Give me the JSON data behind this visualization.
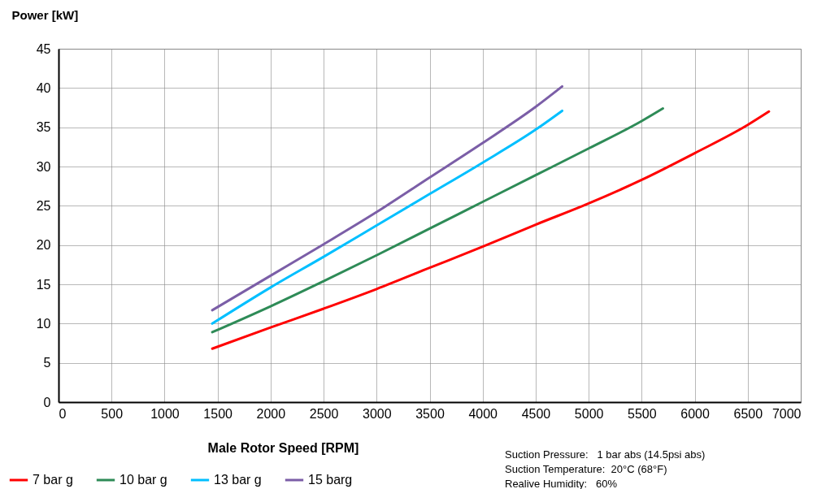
{
  "chart_data": {
    "type": "line",
    "xlabel": "Male Rotor Speed [RPM]",
    "ylabel": "Power [kW]",
    "xlim": [
      0,
      7000
    ],
    "ylim": [
      0,
      45
    ],
    "xticks": [
      0,
      500,
      1000,
      1500,
      2000,
      2500,
      3000,
      3500,
      4000,
      4500,
      5000,
      5500,
      6000,
      6500,
      7000
    ],
    "yticks": [
      0,
      5,
      10,
      15,
      20,
      25,
      30,
      35,
      40,
      45
    ],
    "grid": true,
    "legend": "bottom left",
    "series": [
      {
        "name": "7 bar g",
        "color": "#ff0000",
        "x": [
          1450,
          2000,
          2500,
          3000,
          3500,
          4000,
          4500,
          5000,
          5500,
          6000,
          6500,
          6700
        ],
        "values": [
          6.8,
          9.5,
          11.9,
          14.4,
          17.1,
          19.8,
          22.6,
          25.3,
          28.3,
          31.7,
          35.3,
          37.0
        ]
      },
      {
        "name": "10 bar g",
        "color": "#2e8b57",
        "x": [
          1450,
          2000,
          2500,
          3000,
          3500,
          4000,
          4500,
          5000,
          5500,
          5700
        ],
        "values": [
          8.9,
          12.2,
          15.4,
          18.7,
          22.1,
          25.5,
          28.9,
          32.3,
          35.8,
          37.4
        ]
      },
      {
        "name": "13 bar g",
        "color": "#00bfff",
        "x": [
          1450,
          2000,
          2500,
          3000,
          3500,
          4000,
          4500,
          4750
        ],
        "values": [
          10.0,
          14.6,
          18.5,
          22.5,
          26.5,
          30.5,
          34.7,
          37.1
        ]
      },
      {
        "name": "15 barg",
        "color": "#7b5ea7",
        "x": [
          1450,
          2000,
          2500,
          3000,
          3500,
          4000,
          4500,
          4750
        ],
        "values": [
          11.7,
          16.1,
          20.1,
          24.2,
          28.6,
          33.0,
          37.6,
          40.2
        ]
      }
    ],
    "annotations": [
      "Suction Pressure:   1 bar abs (14.5psi abs)",
      "Suction Temperature:  20°C (68°F)",
      "Realive Humidity:   60%"
    ]
  }
}
